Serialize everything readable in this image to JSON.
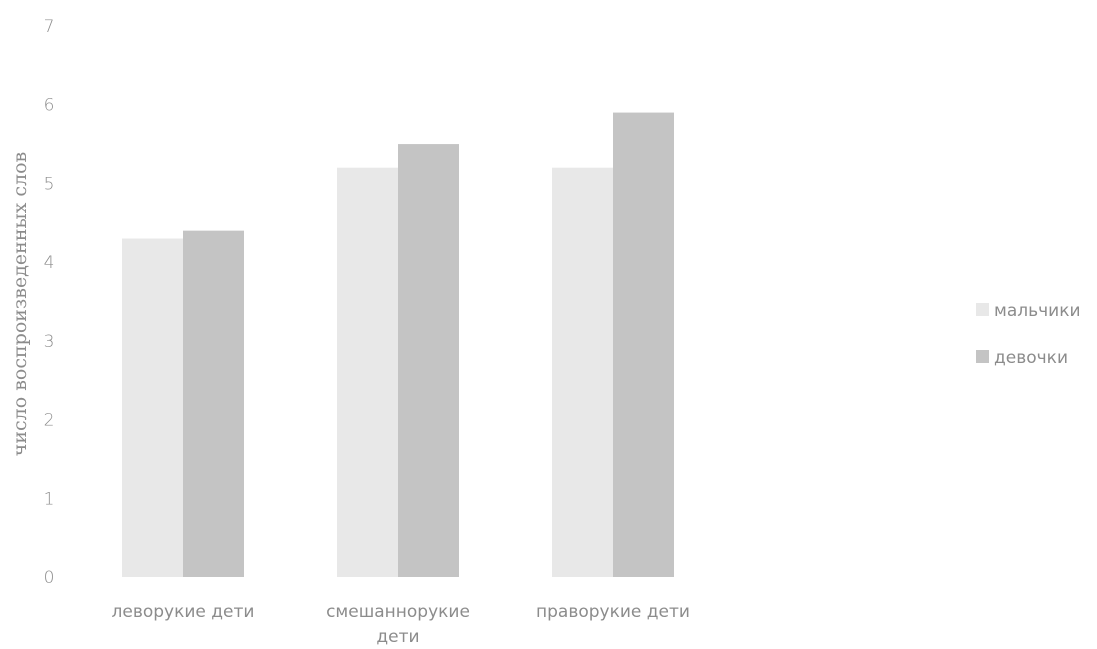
{
  "chart_data": {
    "type": "bar",
    "categories": [
      "леворукие дети",
      "смешаннорукие дети",
      "праворукие дети"
    ],
    "category_label_lines": [
      [
        "леворукие дети"
      ],
      [
        "смешаннорукие",
        "дети"
      ],
      [
        "праворукие дети"
      ]
    ],
    "series": [
      {
        "name": "мальчики",
        "values": [
          4.3,
          5.2,
          5.2
        ],
        "color": "#e8e8e8"
      },
      {
        "name": "девочки",
        "values": [
          4.4,
          5.5,
          5.9
        ],
        "color": "#c4c4c4"
      }
    ],
    "title": "",
    "xlabel": "",
    "ylabel": "число воспроизведенных слов",
    "ylim": [
      0,
      7
    ],
    "yticks": [
      "0",
      "1",
      "2",
      "3",
      "4",
      "5",
      "6",
      "7"
    ],
    "grid": false,
    "legend_position": "right"
  }
}
